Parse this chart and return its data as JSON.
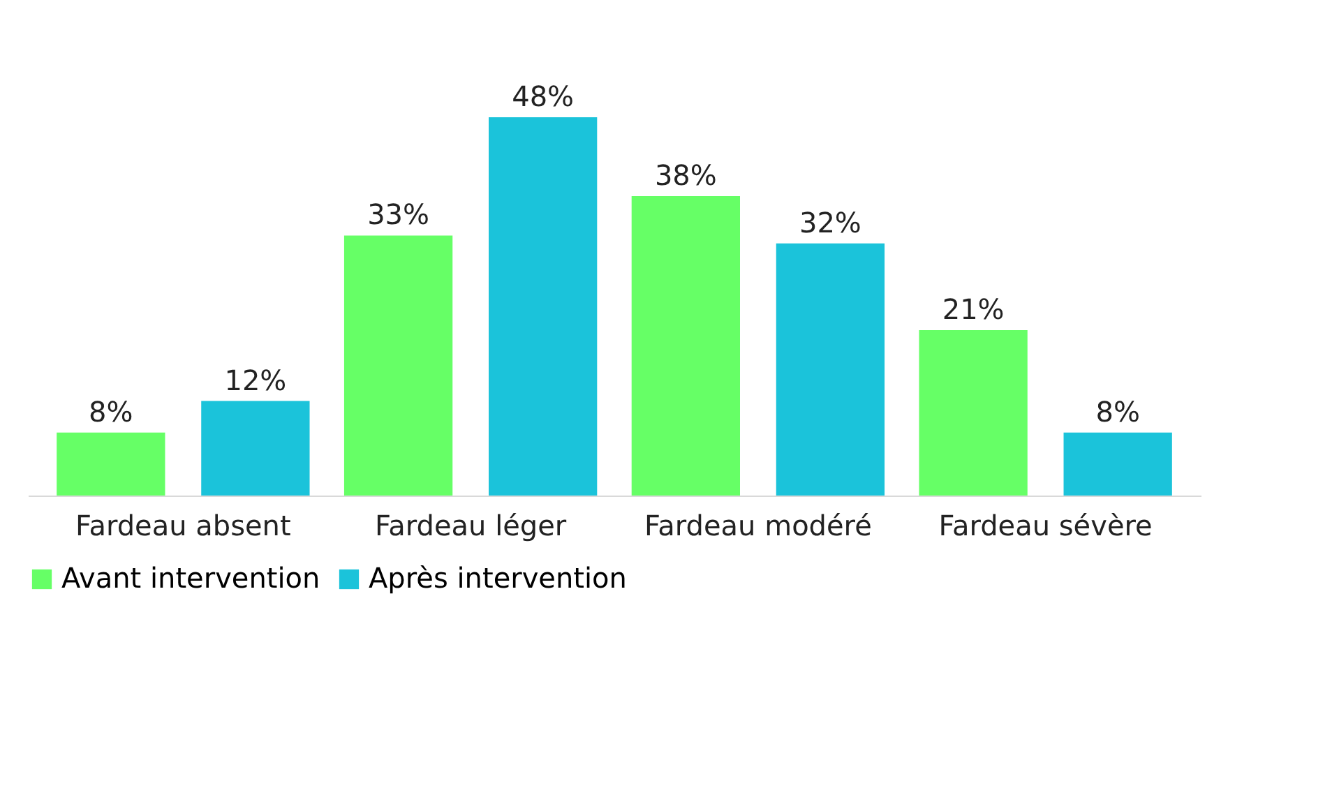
{
  "chart_data": {
    "type": "bar",
    "categories": [
      "Fardeau absent",
      "Fardeau léger",
      "Fardeau modéré",
      "Fardeau sévère"
    ],
    "series": [
      {
        "name": "Avant intervention",
        "color": "#66ff66",
        "values": [
          8,
          33,
          38,
          21
        ],
        "value_labels": [
          "8%",
          "33%",
          "38%",
          "21%"
        ]
      },
      {
        "name": "Après intervention",
        "color": "#1bc3da",
        "values": [
          12,
          48,
          32,
          8
        ],
        "value_labels": [
          "12%",
          "48%",
          "32%",
          "8%"
        ]
      }
    ],
    "legend": "bottom",
    "grid": false
  }
}
